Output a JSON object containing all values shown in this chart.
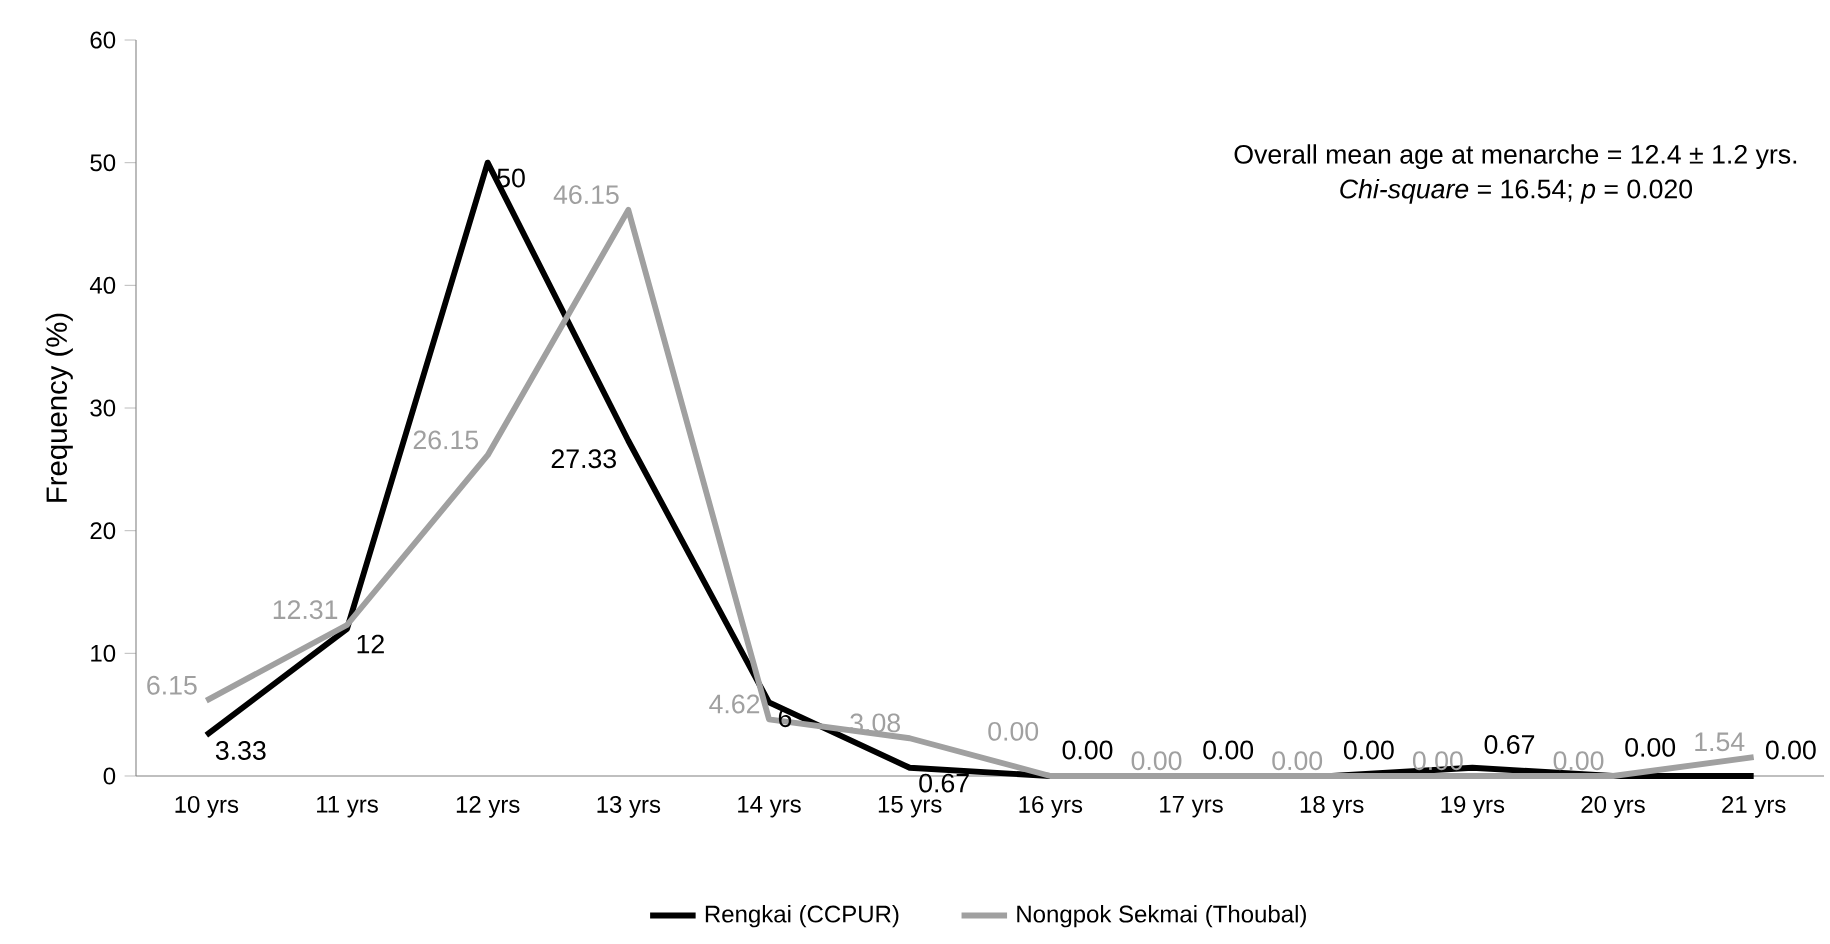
{
  "chart_data": {
    "type": "line",
    "ylabel": "Frequency (%)",
    "categories": [
      "10 yrs",
      "11 yrs",
      "12 yrs",
      "13 yrs",
      "14 yrs",
      "15 yrs",
      "16 yrs",
      "17 yrs",
      "18 yrs",
      "19 yrs",
      "20 yrs",
      "21 yrs"
    ],
    "series": [
      {
        "name": "Rengkai (CCPUR)",
        "color": "#000000",
        "values": [
          3.33,
          12,
          50,
          27.33,
          6,
          0.67,
          0,
          0,
          0,
          0.67,
          0,
          0
        ],
        "value_labels": [
          "3.33",
          "12",
          "50",
          "27.33",
          "6",
          "0.67",
          "0.00",
          "0.00",
          "0.00",
          "0.67",
          "0.00",
          "0.00"
        ]
      },
      {
        "name": "Nongpok Sekmai (Thoubal)",
        "color": "#a0a0a0",
        "values": [
          6.15,
          12.31,
          26.15,
          46.15,
          4.62,
          3.08,
          0,
          0,
          0,
          0,
          0,
          1.54
        ],
        "value_labels": [
          "6.15",
          "12.31",
          "26.15",
          "46.15",
          "4.62",
          "3.08",
          "0.00",
          "0.00",
          "0.00",
          "0.00",
          "0.00",
          "1.54"
        ]
      }
    ],
    "ylim": [
      0,
      60
    ],
    "yticks": [
      0,
      10,
      20,
      30,
      40,
      50,
      60
    ],
    "grid": false,
    "legend": "bottom",
    "marker": "none",
    "line_style": "solid",
    "annotations": [
      "Overall mean age at menarche = 12.4 ± 1.2 yrs.",
      "*Chi-square* = 16.54; *p* = 0.020"
    ]
  }
}
